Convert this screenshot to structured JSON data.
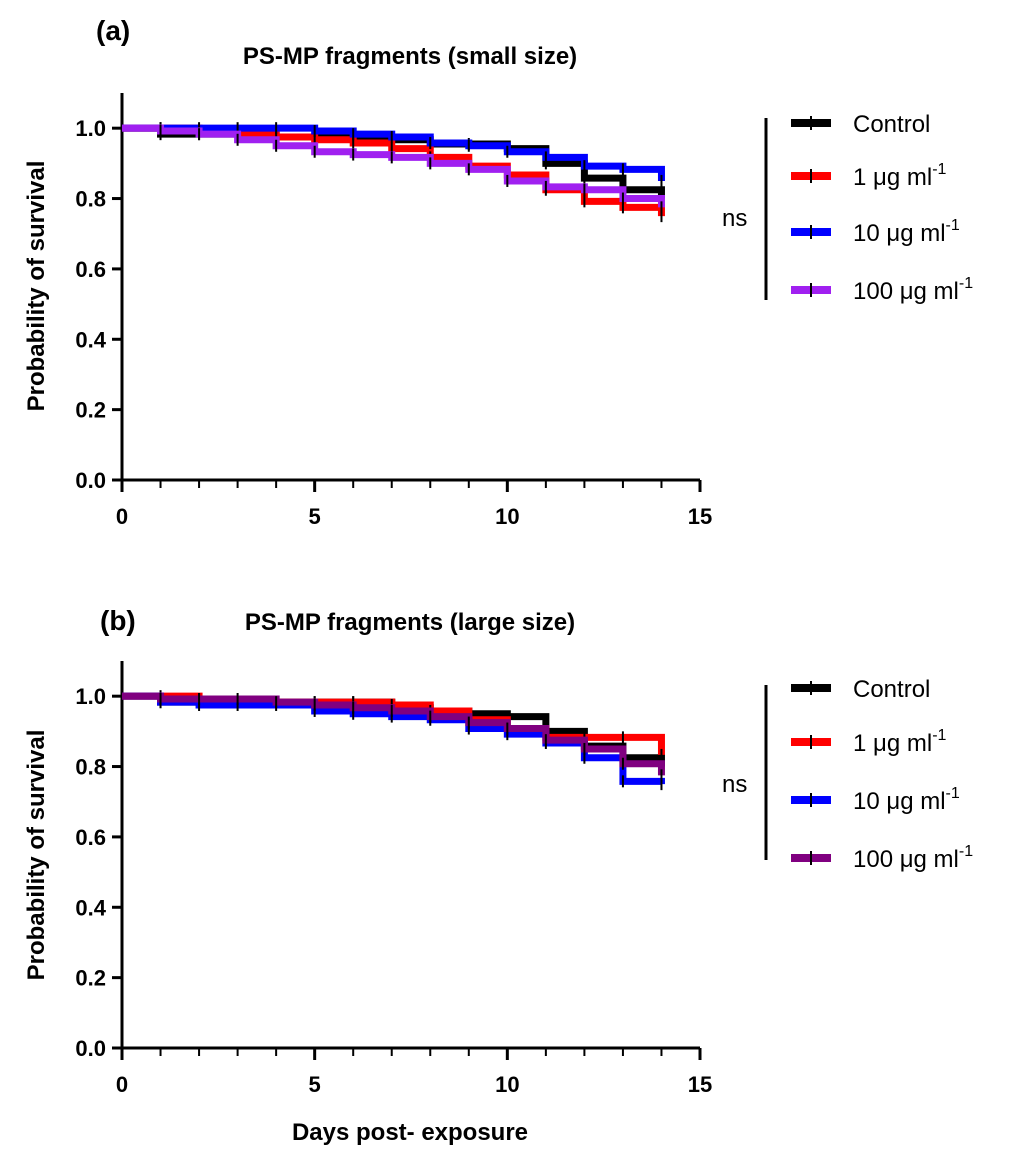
{
  "figure": {
    "xlabel": "Days post- exposure"
  },
  "chart_data": [
    {
      "type": "line",
      "subtype": "kaplan-meier step",
      "panel_label": "(a)",
      "title": "PS-MP fragments (small size)",
      "xlabel": "",
      "ylabel": "Probability of survival",
      "xlim": [
        0,
        15
      ],
      "ylim": [
        0,
        1.1
      ],
      "xticks": [
        "0",
        "5",
        "10",
        "15"
      ],
      "yticks": [
        "0.0",
        "0.2",
        "0.4",
        "0.6",
        "0.8",
        "1.0"
      ],
      "grid": false,
      "legend_position": "right",
      "significance": "ns",
      "series": [
        {
          "name": "Control",
          "color": "#000000",
          "x": [
            0,
            1,
            2,
            3,
            4,
            5,
            6,
            7,
            8,
            9,
            10,
            11,
            12,
            13,
            14
          ],
          "y": [
            1.0,
            0.983,
            0.983,
            0.983,
            0.975,
            0.975,
            0.975,
            0.967,
            0.955,
            0.955,
            0.942,
            0.9,
            0.858,
            0.825,
            0.8
          ]
        },
        {
          "name": "1 μg ml-1",
          "color": "#ff0000",
          "x": [
            0,
            1,
            2,
            3,
            4,
            5,
            6,
            7,
            8,
            9,
            10,
            11,
            12,
            13,
            14
          ],
          "y": [
            1.0,
            1.0,
            0.992,
            0.983,
            0.975,
            0.967,
            0.958,
            0.942,
            0.917,
            0.892,
            0.867,
            0.825,
            0.792,
            0.775,
            0.75
          ]
        },
        {
          "name": "10 μg ml-1",
          "color": "#0000ff",
          "x": [
            0,
            1,
            2,
            3,
            4,
            5,
            6,
            7,
            8,
            9,
            10,
            11,
            12,
            13,
            14
          ],
          "y": [
            1.0,
            1.0,
            1.0,
            1.0,
            1.0,
            0.992,
            0.983,
            0.975,
            0.958,
            0.95,
            0.933,
            0.917,
            0.892,
            0.883,
            0.85
          ]
        },
        {
          "name": "100 μg ml-1",
          "color": "#a020f0",
          "x": [
            0,
            1,
            2,
            3,
            4,
            5,
            6,
            7,
            8,
            9,
            10,
            11,
            12,
            13,
            14
          ],
          "y": [
            1.0,
            0.992,
            0.983,
            0.967,
            0.95,
            0.933,
            0.925,
            0.917,
            0.9,
            0.883,
            0.85,
            0.833,
            0.825,
            0.8,
            0.775
          ]
        }
      ]
    },
    {
      "type": "line",
      "subtype": "kaplan-meier step",
      "panel_label": "(b)",
      "title": "PS-MP fragments (large size)",
      "xlabel": "Days post- exposure",
      "ylabel": "Probability of survival",
      "xlim": [
        0,
        15
      ],
      "ylim": [
        0,
        1.1
      ],
      "xticks": [
        "0",
        "5",
        "10",
        "15"
      ],
      "yticks": [
        "0.0",
        "0.2",
        "0.4",
        "0.6",
        "0.8",
        "1.0"
      ],
      "grid": false,
      "legend_position": "right",
      "significance": "ns",
      "series": [
        {
          "name": "Control",
          "color": "#000000",
          "x": [
            0,
            1,
            2,
            3,
            4,
            5,
            6,
            7,
            8,
            9,
            10,
            11,
            12,
            13,
            14
          ],
          "y": [
            1.0,
            0.983,
            0.983,
            0.983,
            0.983,
            0.983,
            0.983,
            0.967,
            0.958,
            0.95,
            0.942,
            0.9,
            0.858,
            0.825,
            0.8
          ]
        },
        {
          "name": "1 μg ml-1",
          "color": "#ff0000",
          "x": [
            0,
            1,
            2,
            3,
            4,
            5,
            6,
            7,
            8,
            9,
            10,
            11,
            12,
            13,
            14
          ],
          "y": [
            1.0,
            1.0,
            0.992,
            0.983,
            0.983,
            0.983,
            0.983,
            0.975,
            0.958,
            0.933,
            0.908,
            0.883,
            0.883,
            0.883,
            0.833
          ]
        },
        {
          "name": "10 μg ml-1",
          "color": "#0000ff",
          "x": [
            0,
            1,
            2,
            3,
            4,
            5,
            6,
            7,
            8,
            9,
            10,
            11,
            12,
            13,
            14
          ],
          "y": [
            1.0,
            0.983,
            0.975,
            0.975,
            0.975,
            0.958,
            0.95,
            0.942,
            0.933,
            0.908,
            0.892,
            0.867,
            0.825,
            0.758,
            0.75
          ]
        },
        {
          "name": "100 μg ml-1",
          "color": "#800080",
          "x": [
            0,
            1,
            2,
            3,
            4,
            5,
            6,
            7,
            8,
            9,
            10,
            11,
            12,
            13,
            14
          ],
          "y": [
            1.0,
            0.992,
            0.992,
            0.992,
            0.983,
            0.975,
            0.967,
            0.958,
            0.942,
            0.925,
            0.908,
            0.875,
            0.85,
            0.808,
            0.775
          ]
        }
      ]
    }
  ]
}
